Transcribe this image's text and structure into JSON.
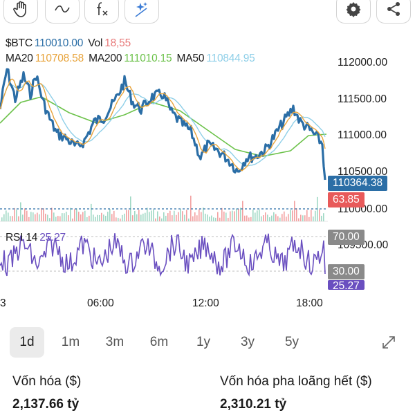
{
  "toolbar": {
    "tools": [
      {
        "icon": "hand-pointer-icon"
      },
      {
        "icon": "trend-line-icon"
      },
      {
        "icon": "function-icon"
      },
      {
        "icon": "ai-sparkle-icon"
      }
    ],
    "right": [
      {
        "icon": "gear-icon"
      },
      {
        "icon": "share-icon"
      }
    ]
  },
  "legend": {
    "symbol": "$BTC",
    "price": "110010.00",
    "vol_label": "Vol",
    "vol_value": "18,55",
    "ma20_label": "MA20",
    "ma20_value": "110708.58",
    "ma200_label": "MA200",
    "ma200_value": "111010.15",
    "ma50_label": "MA50",
    "ma50_value": "110844.95"
  },
  "axis": {
    "price_ticks": [
      "112000.00",
      "111500.00",
      "111000.00",
      "110500.00",
      "110000.00",
      "109500.00"
    ],
    "time_ticks": [
      "3",
      "06:00",
      "12:00",
      "18:00"
    ]
  },
  "tags": {
    "last_price": "110364.38",
    "volume": "63.85",
    "rsi_upper": "70.00",
    "rsi_lower": "30.00",
    "rsi_current": "25.27"
  },
  "rsi": {
    "label": "RSI 14",
    "value": "25.27"
  },
  "ranges": {
    "items": [
      "1d",
      "1m",
      "3m",
      "6m",
      "1y",
      "3y",
      "5y"
    ],
    "active": "1d",
    "expand_icon": "expand-icon"
  },
  "stats": {
    "market_cap_label": "Vốn hóa ($)",
    "market_cap_value": "2,137.66 tỷ",
    "fdv_label": "Vốn hóa pha loãng hết ($)",
    "fdv_value": "2,310.21 tỷ"
  },
  "colors": {
    "price_line": "#2b6ea6",
    "ma20": "#e8a43c",
    "ma200": "#6cc24a",
    "ma50": "#8ecfe8",
    "rsi": "#6a4fc0",
    "last_price_tag": "#2b6ea6",
    "volume_tag": "#e85a5a",
    "rsi_band_tag": "#8a8a8a",
    "rsi_current_tag": "#6a4fc0"
  }
}
